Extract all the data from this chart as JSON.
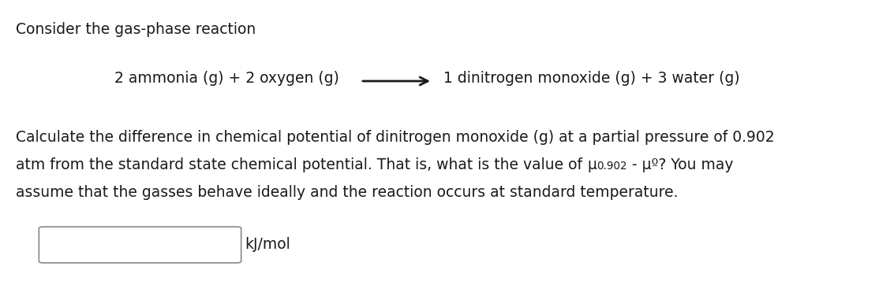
{
  "title_line": "Consider the gas-phase reaction",
  "reaction_left": "2 ammonia (g) + 2 oxygen (g)",
  "reaction_right": "1 dinitrogen monoxide (g) + 3 water (g)",
  "para_line1": "Calculate the difference in chemical potential of dinitrogen monoxide (g) at a partial pressure of 0.902",
  "para_line2_before": "atm from the standard state chemical potential. That is, what is the value of ",
  "para_line2_mu": "μ",
  "para_line2_sub": "0.902",
  "para_line2_after": " - μº? You may",
  "para_line3": "assume that the gasses behave ideally and the reaction occurs at standard temperature.",
  "unit_label": "kJ/mol",
  "bg_color": "#ffffff",
  "text_color": "#1a1a1a",
  "font_size": 13.5,
  "fig_width": 11.28,
  "fig_height": 3.76,
  "dpi": 100
}
